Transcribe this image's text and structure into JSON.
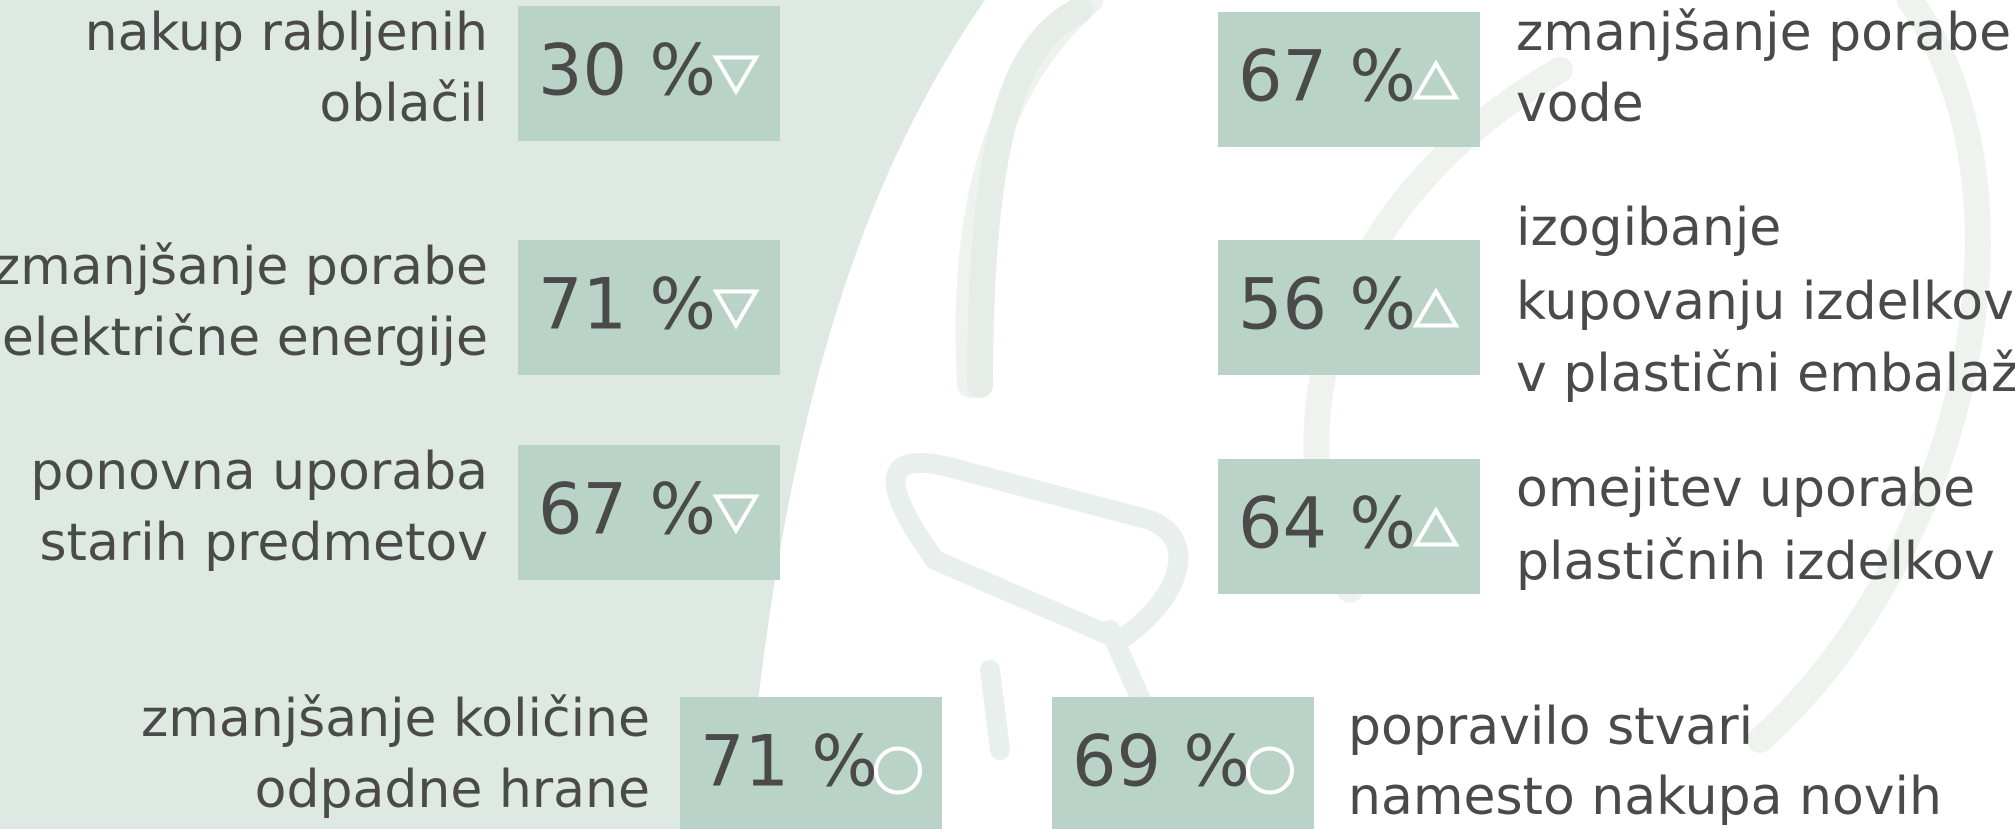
{
  "items": [
    {
      "lines": [
        "nakup rabljenih",
        "oblačil"
      ],
      "value": "30 %"
    },
    {
      "lines": [
        "zmanjšanje porabe",
        "električne energije"
      ],
      "value": "71 %"
    },
    {
      "lines": [
        "ponovna uporaba",
        "starih predmetov"
      ],
      "value": "67 %"
    },
    {
      "lines": [
        "zmanjšanje porabe",
        "vode"
      ],
      "value": "67 %"
    },
    {
      "lines": [
        "izogibanje",
        "kupovanju izdelkov",
        "v plastični embalaži"
      ],
      "value": "56 %"
    },
    {
      "lines": [
        "omejitev uporabe",
        "plastičnih izdelkov"
      ],
      "value": "64 %"
    },
    {
      "lines": [
        "zmanjšanje količine",
        "odpadne hrane"
      ],
      "value": "71 %"
    },
    {
      "lines": [
        "popravilo stvari",
        "namesto nakupa novih"
      ],
      "value": "69 %"
    }
  ]
}
